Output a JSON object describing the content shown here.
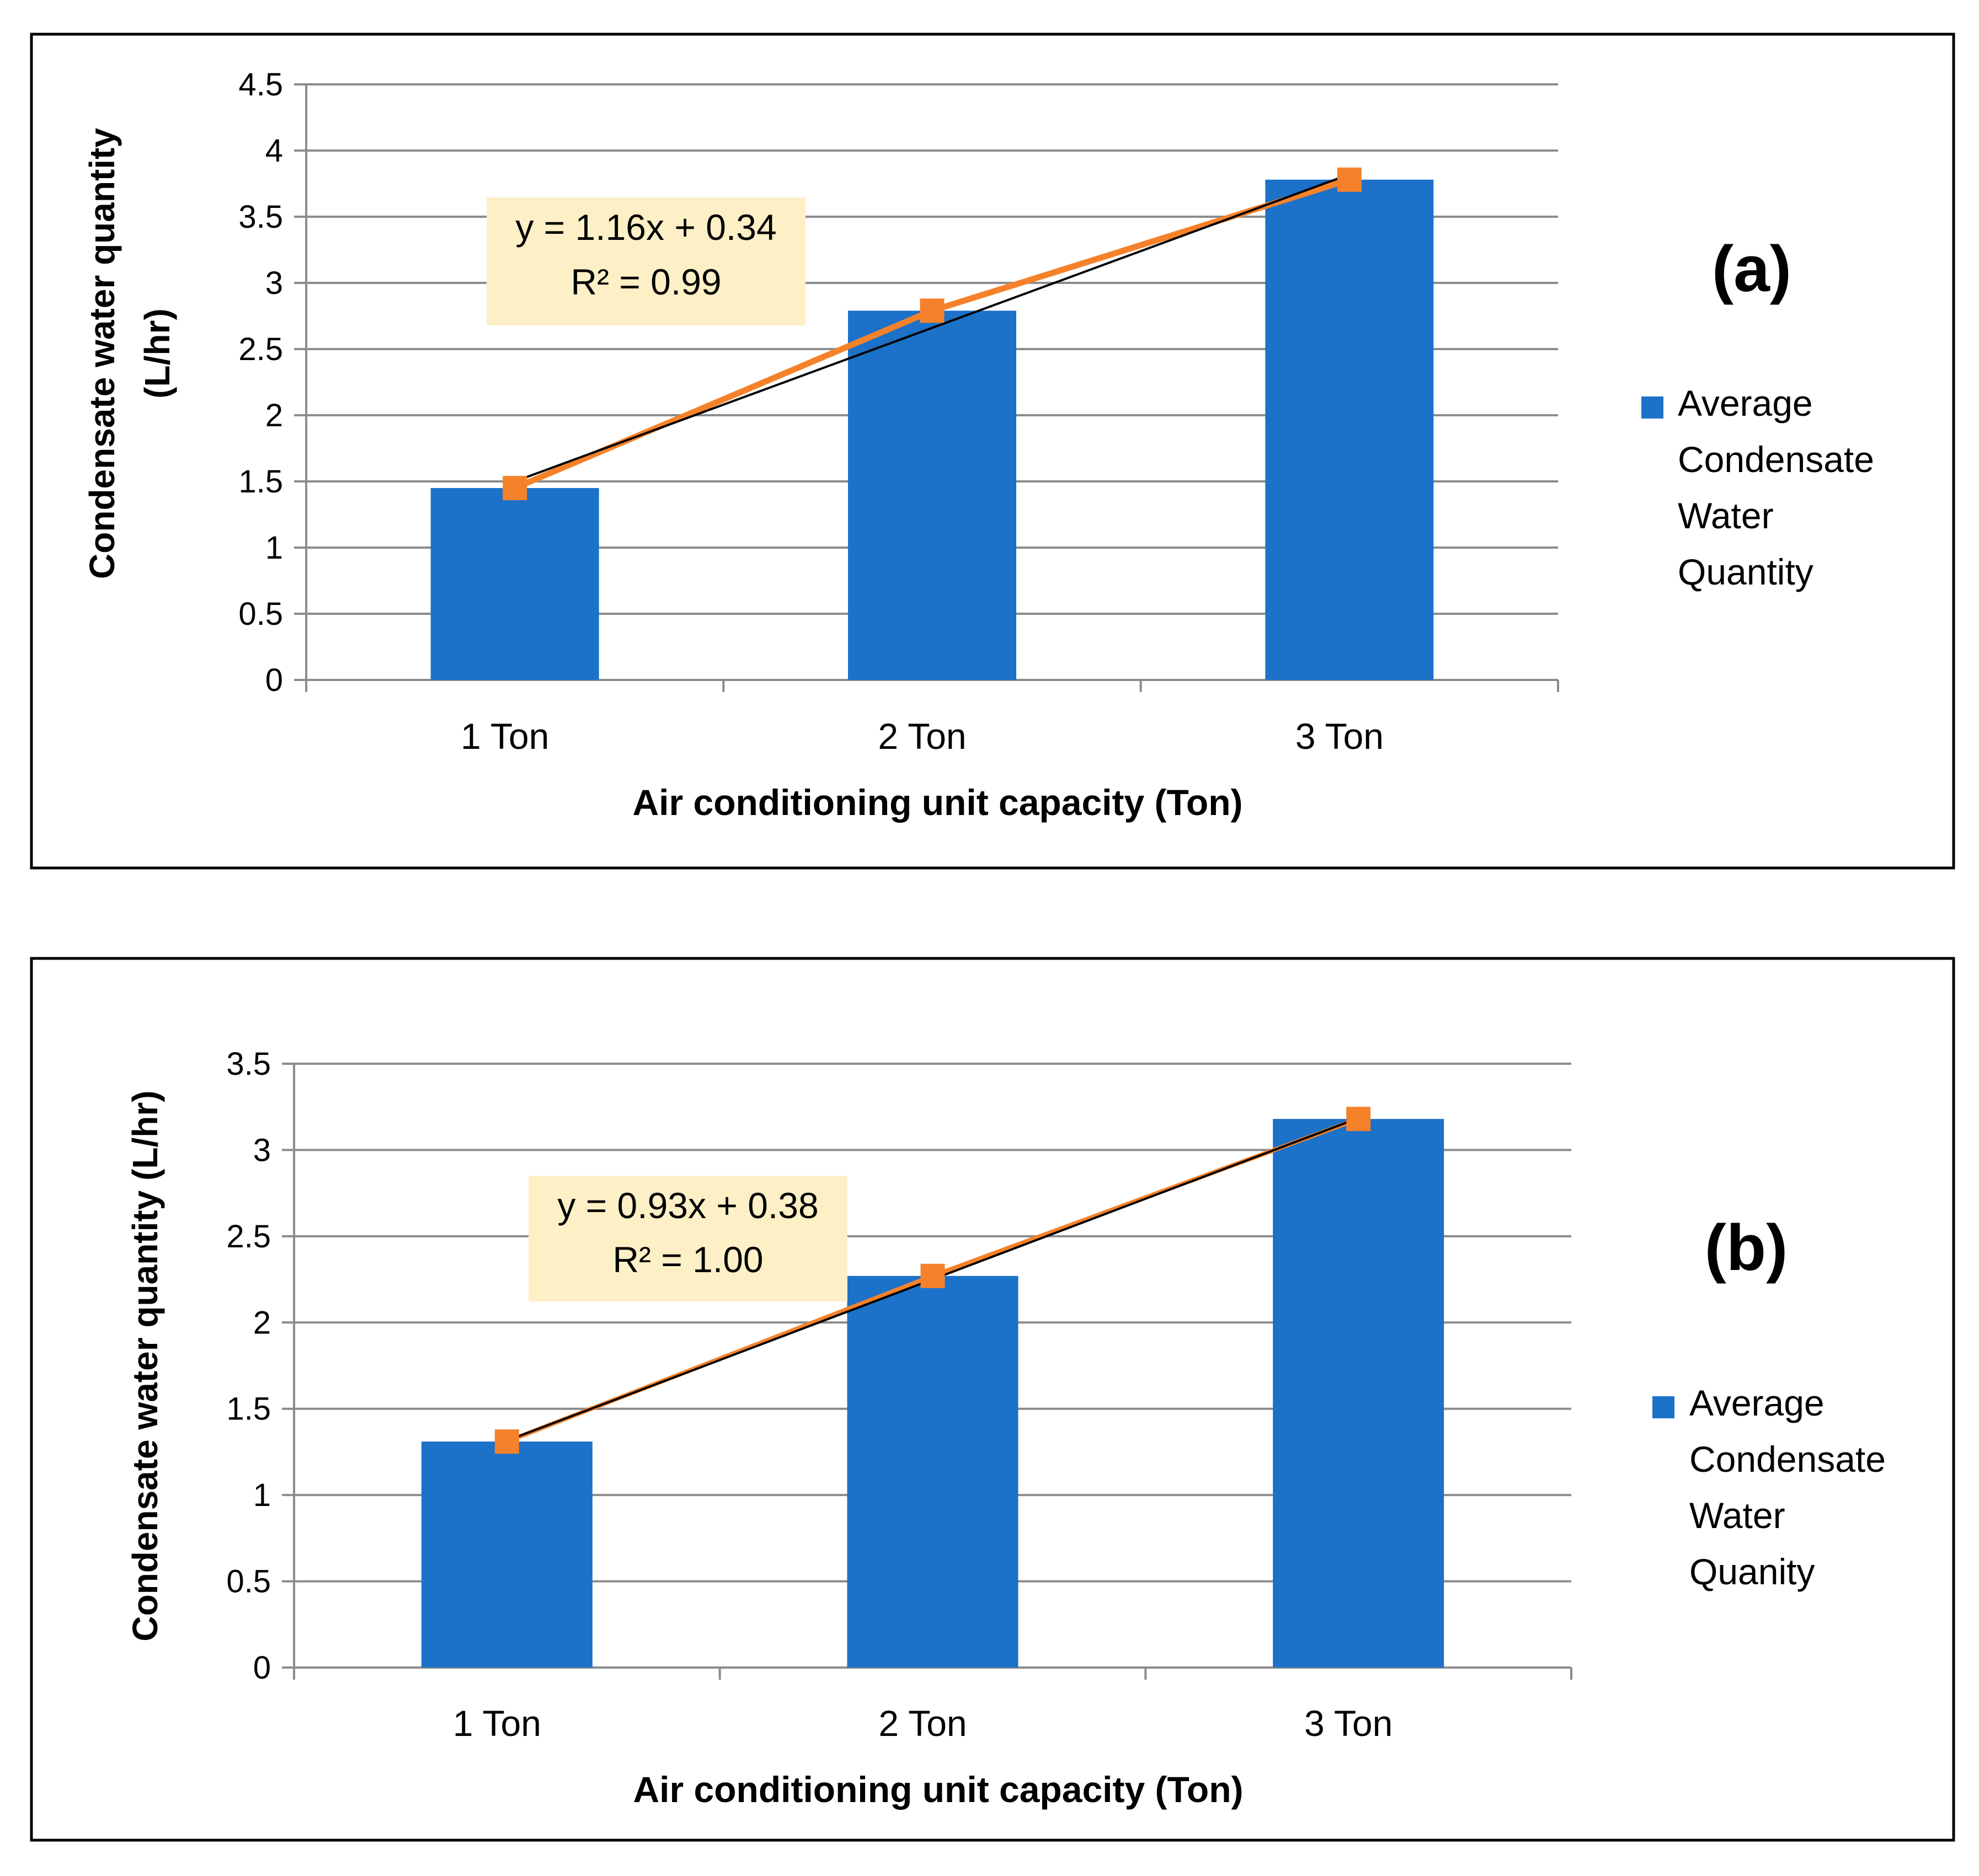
{
  "colors": {
    "bar": "#1c71c8",
    "line": "#f5822a",
    "trend": "#000000",
    "grid": "#8c8c8c",
    "equation_box": "#fdf0c6",
    "frame": "#000000"
  },
  "chart_data": [
    {
      "type": "bar",
      "panel_label": "(a)",
      "categories": [
        "1 Ton",
        "2 Ton",
        "3 Ton"
      ],
      "series": [
        {
          "name": "Average Condensate Water Quantity",
          "values": [
            1.45,
            2.79,
            3.78
          ]
        }
      ],
      "line_values": [
        1.45,
        2.79,
        3.78
      ],
      "trendline": {
        "slope": 1.16,
        "intercept": 0.34
      },
      "equation": "y = 1.16x + 0.34",
      "r2": "R² = 0.99",
      "legend_lines": [
        "Average",
        "Condensate",
        "Water",
        "Quantity"
      ],
      "ylabel_lines": [
        "Condensate water quantity",
        "(L/hr)"
      ],
      "xlabel": "Air conditioning unit capacity (Ton)",
      "ylim": [
        0,
        4.5
      ],
      "yticks": [
        "0",
        "0.5",
        "1",
        "1.5",
        "2",
        "2.5",
        "3",
        "3.5",
        "4",
        "4.5"
      ],
      "grid": true,
      "legend_position": "right"
    },
    {
      "type": "bar",
      "panel_label": "(b)",
      "categories": [
        "1 Ton",
        "2 Ton",
        "3 Ton"
      ],
      "series": [
        {
          "name": "Average Condensate Water Quanity",
          "values": [
            1.31,
            2.27,
            3.18
          ]
        }
      ],
      "line_values": [
        1.31,
        2.27,
        3.18
      ],
      "trendline": {
        "slope": 0.935,
        "intercept": 0.38
      },
      "equation": "y = 0.93x + 0.38",
      "r2": "R² = 1.00",
      "legend_lines": [
        "Average",
        "Condensate",
        "Water",
        "Quanity"
      ],
      "ylabel_lines": [
        "Condensate water quantity (L/hr)"
      ],
      "xlabel": "Air conditioning unit capacity (Ton)",
      "ylim": [
        0,
        3.5
      ],
      "yticks": [
        "0",
        "0.5",
        "1",
        "1.5",
        "2",
        "2.5",
        "3",
        "3.5"
      ],
      "grid": true,
      "legend_position": "right"
    }
  ]
}
